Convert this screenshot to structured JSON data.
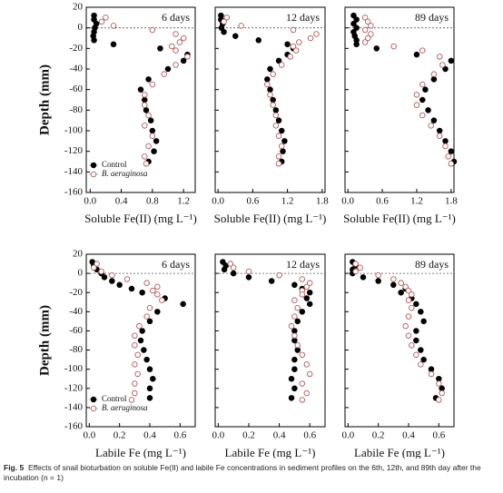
{
  "chart_data": [
    {
      "type": "scatter",
      "title": "6 days",
      "xlabel": "Soluble Fe(II) (mg L⁻¹)",
      "ylabel": "Depth (mm)",
      "legend": "lower left",
      "ytick_labels": true,
      "xlim": [
        -0.05,
        1.35
      ],
      "xticks": [
        {
          "value": 0,
          "label": "0.0"
        },
        0.4,
        0.8,
        1.2
      ],
      "ylim": [
        -160,
        20
      ],
      "yticks": [
        20,
        0,
        -20,
        -40,
        -60,
        -80,
        -100,
        -120,
        -140,
        -160
      ],
      "series": [
        {
          "name": "Control",
          "color": "#000000",
          "filled": true,
          "x": [
            0.05,
            0.05,
            0.08,
            0.06,
            0.05,
            0.04,
            0.05,
            0.3,
            0.9,
            1.25,
            1.2,
            1.0,
            0.75,
            0.65,
            0.7,
            0.72,
            0.78,
            0.8,
            0.85,
            0.82,
            0.75
          ],
          "values": [
            12,
            8,
            4,
            0,
            -4,
            -8,
            -12,
            -16,
            -20,
            -26,
            -32,
            -40,
            -50,
            -60,
            -70,
            -80,
            -90,
            -100,
            -110,
            -120,
            -130
          ]
        },
        {
          "name": "B. aeruginosa",
          "color": "#b05a5a",
          "filled": false,
          "x": [
            0.2,
            0.15,
            0.3,
            0.8,
            1.1,
            1.2,
            1.15,
            1.05,
            1.1,
            1.25,
            1.1,
            0.95,
            0.8,
            0.7,
            0.7,
            0.75,
            0.7,
            0.8,
            0.75,
            0.7,
            0.72
          ],
          "values": [
            10,
            6,
            2,
            -2,
            -6,
            -10,
            -14,
            -18,
            -22,
            -28,
            -36,
            -45,
            -55,
            -65,
            -75,
            -85,
            -95,
            -105,
            -115,
            -125,
            -132
          ]
        }
      ]
    },
    {
      "type": "scatter",
      "title": "12 days",
      "xlabel": "Soluble Fe(II) (mg L⁻¹)",
      "ytick_labels": false,
      "xlim": [
        -0.05,
        1.85
      ],
      "xticks": [
        {
          "value": 0,
          "label": "0.0"
        },
        0.6,
        1.2,
        1.8
      ],
      "ylim": [
        -160,
        20
      ],
      "yticks": [
        20,
        0,
        -20,
        -40,
        -60,
        -80,
        -100,
        -120,
        -140,
        -160
      ],
      "series": [
        {
          "color": "#000000",
          "filled": true,
          "x": [
            0.05,
            0.05,
            0.08,
            0.06,
            0.1,
            0.3,
            0.7,
            1.2,
            1.3,
            1.2,
            1.05,
            0.9,
            0.85,
            0.9,
            0.95,
            1.0,
            1.05,
            1.1,
            1.15,
            1.12,
            1.1
          ],
          "values": [
            12,
            8,
            4,
            0,
            -4,
            -8,
            -12,
            -16,
            -20,
            -26,
            -32,
            -40,
            -50,
            -60,
            -70,
            -80,
            -90,
            -100,
            -110,
            -120,
            -130
          ]
        },
        {
          "color": "#b05a5a",
          "filled": false,
          "x": [
            0.15,
            0.1,
            0.4,
            1.3,
            1.7,
            1.6,
            1.4,
            1.3,
            1.35,
            1.25,
            1.1,
            0.95,
            0.85,
            0.9,
            0.95,
            1.0,
            1.0,
            1.05,
            1.1,
            1.05,
            1.05
          ],
          "values": [
            10,
            6,
            2,
            -2,
            -6,
            -10,
            -14,
            -18,
            -22,
            -28,
            -36,
            -45,
            -55,
            -65,
            -75,
            -85,
            -95,
            -105,
            -115,
            -125,
            -132
          ]
        }
      ]
    },
    {
      "type": "scatter",
      "title": "89 days",
      "xlabel": "Soluble Fe(II) (mg L⁻¹)",
      "ytick_labels": false,
      "xlim": [
        -0.05,
        1.85
      ],
      "xticks": [
        {
          "value": 0,
          "label": "0.0"
        },
        0.6,
        1.2,
        1.8
      ],
      "ylim": [
        -160,
        20
      ],
      "yticks": [
        20,
        0,
        -20,
        -40,
        -60,
        -80,
        -100,
        -120,
        -140,
        -160
      ],
      "series": [
        {
          "color": "#000000",
          "filled": true,
          "x": [
            0.1,
            0.15,
            0.1,
            0.15,
            0.1,
            0.12,
            0.15,
            0.15,
            0.5,
            1.2,
            1.8,
            1.7,
            1.5,
            1.35,
            1.3,
            1.4,
            1.5,
            1.6,
            1.7,
            1.8,
            1.85
          ],
          "values": [
            12,
            8,
            4,
            0,
            -4,
            -8,
            -12,
            -16,
            -20,
            -26,
            -32,
            -40,
            -50,
            -60,
            -70,
            -80,
            -90,
            -100,
            -110,
            -120,
            -130
          ]
        },
        {
          "color": "#b05a5a",
          "filled": false,
          "x": [
            0.3,
            0.35,
            0.4,
            0.3,
            0.4,
            0.35,
            0.3,
            0.8,
            1.3,
            1.6,
            1.65,
            1.5,
            1.3,
            1.2,
            1.2,
            1.3,
            1.45,
            1.6,
            1.7,
            1.75,
            1.8
          ],
          "values": [
            10,
            6,
            2,
            -2,
            -6,
            -10,
            -14,
            -18,
            -22,
            -28,
            -36,
            -45,
            -55,
            -65,
            -75,
            -85,
            -95,
            -105,
            -115,
            -125,
            -132
          ]
        }
      ]
    },
    {
      "type": "scatter",
      "title": "6 days",
      "xlabel": "Labile Fe (mg L⁻¹)",
      "ylabel": "Depth (mm)",
      "legend": "lower left",
      "ytick_labels": true,
      "xlim": [
        -0.02,
        0.7
      ],
      "xticks": [
        {
          "value": 0,
          "label": "0.0"
        },
        0.2,
        0.4,
        0.6
      ],
      "ylim": [
        -160,
        20
      ],
      "yticks": [
        20,
        0,
        -20,
        -40,
        -60,
        -80,
        -100,
        -120,
        -140,
        -160
      ],
      "series": [
        {
          "name": "Control",
          "color": "#000000",
          "filled": true,
          "x": [
            0.02,
            0.03,
            0.05,
            0.08,
            0.1,
            0.15,
            0.2,
            0.28,
            0.35,
            0.5,
            0.62,
            0.45,
            0.4,
            0.35,
            0.34,
            0.36,
            0.38,
            0.4,
            0.42,
            0.4,
            0.4
          ],
          "values": [
            12,
            8,
            4,
            0,
            -4,
            -8,
            -12,
            -16,
            -20,
            -26,
            -32,
            -40,
            -50,
            -60,
            -70,
            -80,
            -90,
            -100,
            -110,
            -120,
            -130
          ]
        },
        {
          "name": "B. aeruginosa",
          "color": "#b05a5a",
          "filled": false,
          "x": [
            0.05,
            0.03,
            0.08,
            0.15,
            0.25,
            0.38,
            0.45,
            0.42,
            0.45,
            0.48,
            0.4,
            0.38,
            0.33,
            0.3,
            0.3,
            0.32,
            0.3,
            0.32,
            0.3,
            0.3,
            0.28
          ],
          "values": [
            10,
            6,
            2,
            -2,
            -6,
            -10,
            -14,
            -18,
            -22,
            -28,
            -36,
            -45,
            -55,
            -65,
            -75,
            -85,
            -95,
            -105,
            -115,
            -125,
            -132
          ]
        }
      ]
    },
    {
      "type": "scatter",
      "title": "12 days",
      "xlabel": "Labile Fe (mg L⁻¹)",
      "ytick_labels": false,
      "xlim": [
        -0.02,
        0.7
      ],
      "xticks": [
        {
          "value": 0,
          "label": "0.0"
        },
        0.2,
        0.4,
        0.6
      ],
      "ylim": [
        -160,
        20
      ],
      "yticks": [
        20,
        0,
        -20,
        -40,
        -60,
        -80,
        -100,
        -120,
        -140,
        -160
      ],
      "series": [
        {
          "color": "#000000",
          "filled": true,
          "x": [
            0.03,
            0.05,
            0.04,
            0.1,
            0.2,
            0.35,
            0.5,
            0.55,
            0.6,
            0.58,
            0.6,
            0.55,
            0.52,
            0.5,
            0.5,
            0.52,
            0.5,
            0.5,
            0.48,
            0.5,
            0.48
          ],
          "values": [
            12,
            8,
            4,
            0,
            -4,
            -8,
            -12,
            -16,
            -20,
            -26,
            -32,
            -40,
            -50,
            -60,
            -70,
            -80,
            -90,
            -100,
            -110,
            -120,
            -130
          ]
        },
        {
          "color": "#b05a5a",
          "filled": false,
          "x": [
            0.08,
            0.1,
            0.2,
            0.4,
            0.55,
            0.6,
            0.58,
            0.55,
            0.55,
            0.5,
            0.52,
            0.5,
            0.48,
            0.5,
            0.52,
            0.55,
            0.58,
            0.6,
            0.55,
            0.58,
            0.55
          ],
          "values": [
            10,
            6,
            2,
            -2,
            -6,
            -10,
            -14,
            -18,
            -22,
            -28,
            -36,
            -45,
            -55,
            -65,
            -75,
            -85,
            -95,
            -105,
            -115,
            -125,
            -132
          ]
        }
      ]
    },
    {
      "type": "scatter",
      "title": "89 days",
      "xlabel": "Labile Fe (mg L⁻¹)",
      "ytick_labels": false,
      "xlim": [
        -0.02,
        0.7
      ],
      "xticks": [
        {
          "value": 0,
          "label": "0.0"
        },
        0.2,
        0.4,
        0.6
      ],
      "ylim": [
        -160,
        20
      ],
      "yticks": [
        20,
        0,
        -20,
        -40,
        -60,
        -80,
        -100,
        -120,
        -140,
        -160
      ],
      "series": [
        {
          "color": "#000000",
          "filled": true,
          "x": [
            0.03,
            0.05,
            0.03,
            0.03,
            0.1,
            0.2,
            0.3,
            0.38,
            0.35,
            0.42,
            0.45,
            0.48,
            0.5,
            0.45,
            0.45,
            0.48,
            0.5,
            0.55,
            0.6,
            0.62,
            0.58
          ],
          "values": [
            12,
            8,
            4,
            0,
            -4,
            -8,
            -12,
            -16,
            -20,
            -26,
            -32,
            -40,
            -50,
            -60,
            -70,
            -80,
            -90,
            -100,
            -110,
            -120,
            -130
          ]
        },
        {
          "color": "#b05a5a",
          "filled": false,
          "x": [
            0.05,
            0.08,
            0.05,
            0.2,
            0.3,
            0.35,
            0.38,
            0.4,
            0.42,
            0.4,
            0.42,
            0.4,
            0.38,
            0.4,
            0.42,
            0.45,
            0.48,
            0.55,
            0.6,
            0.62,
            0.6
          ],
          "values": [
            10,
            6,
            2,
            -2,
            -6,
            -10,
            -14,
            -18,
            -22,
            -28,
            -36,
            -45,
            -55,
            -65,
            -75,
            -85,
            -95,
            -105,
            -115,
            -125,
            -132
          ]
        }
      ]
    }
  ],
  "caption": {
    "label": "Fig. 5",
    "text": "Effects of snail bioturbation on soluble Fe(II) and labile Fe concentrations in sediment profiles on the 6th, 12th, and 89th day after the incubation (n = 1)"
  }
}
